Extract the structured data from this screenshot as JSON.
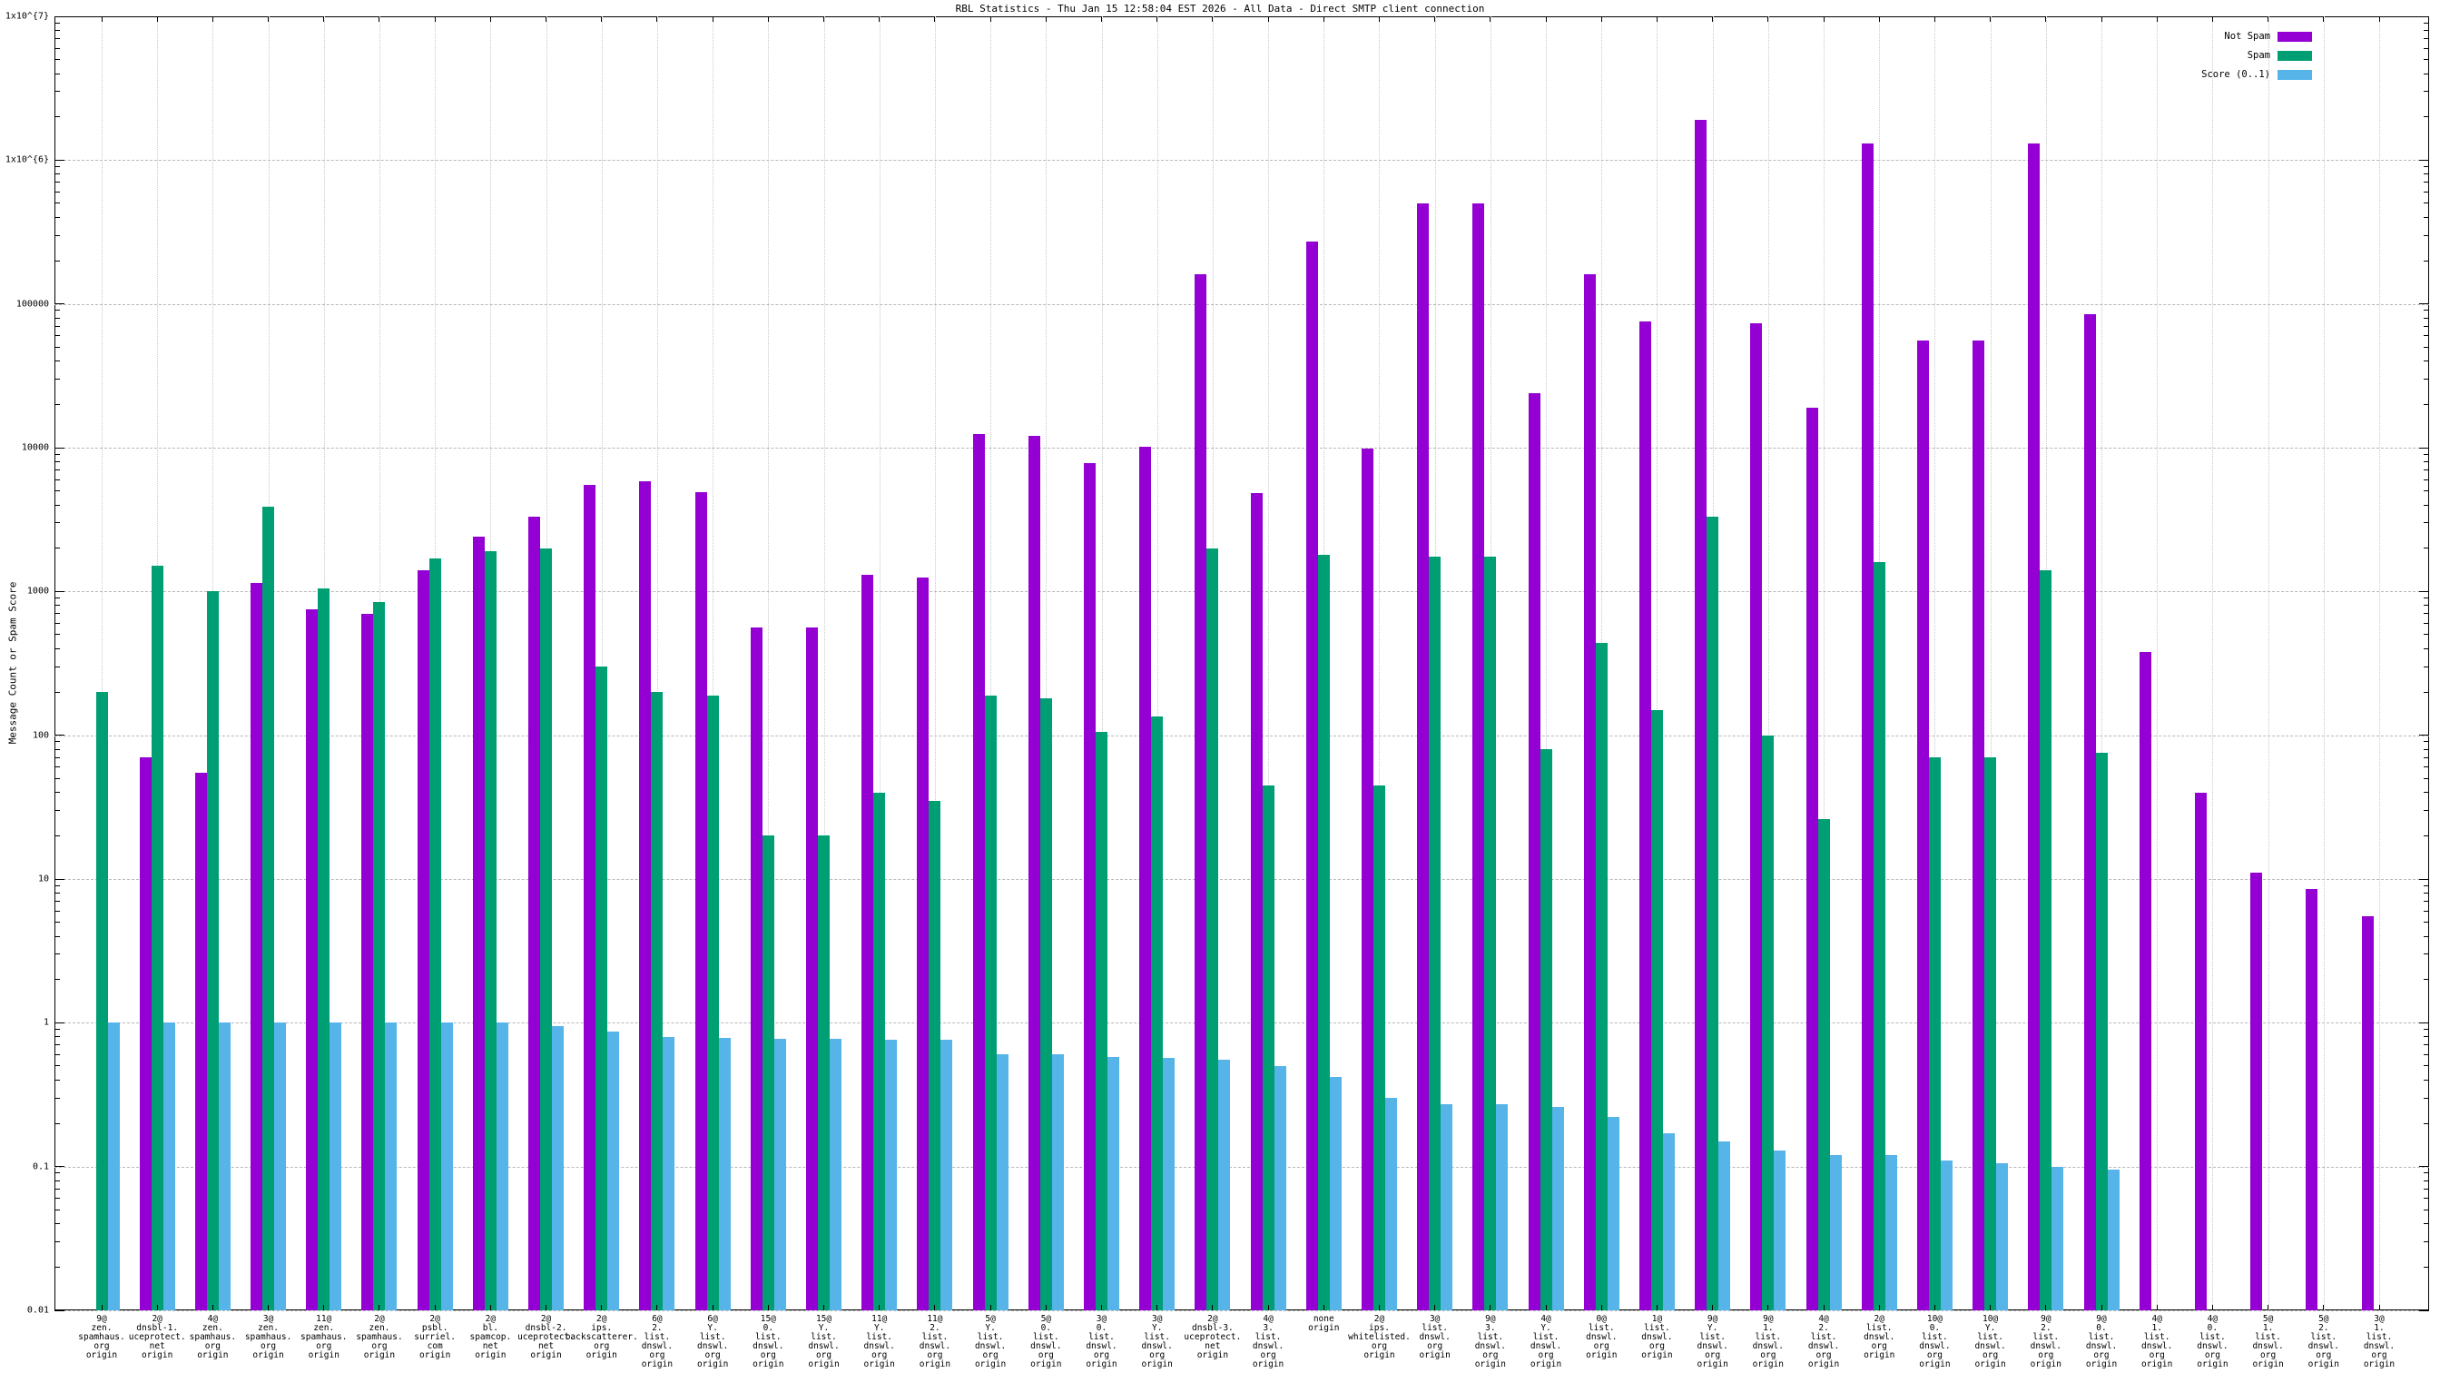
{
  "title": "RBL Statistics - Thu Jan 15 12:58:04 EST 2026 - All Data - Direct SMTP client connection",
  "y_axis": {
    "label": "Message Count or Spam Score",
    "ticks": [
      "1x10^{7}",
      "1x10^{6}",
      "100000",
      "10000",
      "1000",
      "100",
      "10",
      "1",
      "0.1",
      "0.01"
    ]
  },
  "legend": [
    {
      "label": "Not Spam",
      "color": "#9400d3"
    },
    {
      "label": "Spam",
      "color": "#009e73"
    },
    {
      "label": "Score (0..1)",
      "color": "#56b4e9"
    }
  ],
  "colors": {
    "not_spam": "#9400d3",
    "spam": "#009e73",
    "score": "#56b4e9",
    "grid": "#b8b8b8",
    "axis": "#000000"
  },
  "chart_data": {
    "type": "bar",
    "scale": "log",
    "ylim": [
      0.01,
      10000000
    ],
    "grid": true,
    "legend_position": "top-right-inside",
    "title": "RBL Statistics - Thu Jan 15 12:58:04 EST 2026 - All Data - Direct SMTP client connection",
    "ylabel": "Message Count or Spam Score",
    "series_names": [
      "Not Spam",
      "Spam",
      "Score (0..1)"
    ],
    "groups": [
      {
        "label": "9@zen.spamhaus.org origin",
        "lines": [
          "9@",
          "zen.",
          "spamhaus.",
          "org",
          "origin"
        ],
        "not_spam": null,
        "spam": 200,
        "score": 1.0
      },
      {
        "label": "2@dnsbl-1.uceprotect.net origin",
        "lines": [
          "2@",
          "dnsbl-1.",
          "uceprotect.",
          "net",
          "origin"
        ],
        "not_spam": 70,
        "spam": 1500,
        "score": 1.0
      },
      {
        "label": "4@zen.spamhaus.org origin",
        "lines": [
          "4@",
          "zen.",
          "spamhaus.",
          "org",
          "origin"
        ],
        "not_spam": 55,
        "spam": 1000,
        "score": 1.0
      },
      {
        "label": "3@zen.spamhaus.org origin",
        "lines": [
          "3@",
          "zen.",
          "spamhaus.",
          "org",
          "origin"
        ],
        "not_spam": 1150,
        "spam": 3900,
        "score": 1.0
      },
      {
        "label": "11@zen.spamhaus.org origin",
        "lines": [
          "11@",
          "zen.",
          "spamhaus.",
          "org",
          "origin"
        ],
        "not_spam": 750,
        "spam": 1050,
        "score": 1.0
      },
      {
        "label": "2@zen.spamhaus.org origin",
        "lines": [
          "2@",
          "zen.",
          "spamhaus.",
          "org",
          "origin"
        ],
        "not_spam": 700,
        "spam": 850,
        "score": 1.0
      },
      {
        "label": "2@psbl.surriel.com origin",
        "lines": [
          "2@",
          "psbl.",
          "surriel.",
          "com",
          "origin"
        ],
        "not_spam": 1400,
        "spam": 1700,
        "score": 1.0
      },
      {
        "label": "2@bl.spamcop.net origin",
        "lines": [
          "2@",
          "bl.",
          "spamcop.",
          "net",
          "origin"
        ],
        "not_spam": 2400,
        "spam": 1900,
        "score": 1.0
      },
      {
        "label": "2@dnsbl-2.uceprotect.net origin",
        "lines": [
          "2@",
          "dnsbl-2.",
          "uceprotect.",
          "net",
          "origin"
        ],
        "not_spam": 3300,
        "spam": 2000,
        "score": 0.95
      },
      {
        "label": "2@ips.backscatterer.org origin",
        "lines": [
          "2@",
          "ips.",
          "backscatterer.",
          "org",
          "origin"
        ],
        "not_spam": 5500,
        "spam": 300,
        "score": 0.87
      },
      {
        "label": "6@2.list.dnswl.org origin",
        "lines": [
          "6@",
          "2.",
          "list.",
          "dnswl.",
          "org",
          "origin"
        ],
        "not_spam": 5800,
        "spam": 200,
        "score": 0.8
      },
      {
        "label": "6@Y.list.dnswl.org origin",
        "lines": [
          "6@",
          "Y.",
          "list.",
          "dnswl.",
          "org",
          "origin"
        ],
        "not_spam": 4900,
        "spam": 190,
        "score": 0.78
      },
      {
        "label": "15@0.list.dnswl.org origin",
        "lines": [
          "15@",
          "0.",
          "list.",
          "dnswl.",
          "org",
          "origin"
        ],
        "not_spam": 560,
        "spam": 20,
        "score": 0.77
      },
      {
        "label": "15@Y.list.dnswl.org origin",
        "lines": [
          "15@",
          "Y.",
          "list.",
          "dnswl.",
          "org",
          "origin"
        ],
        "not_spam": 560,
        "spam": 20,
        "score": 0.77
      },
      {
        "label": "11@Y.list.dnswl.org origin",
        "lines": [
          "11@",
          "Y.",
          "list.",
          "dnswl.",
          "org",
          "origin"
        ],
        "not_spam": 1300,
        "spam": 40,
        "score": 0.76
      },
      {
        "label": "11@2.list.dnswl.org origin",
        "lines": [
          "11@",
          "2.",
          "list.",
          "dnswl.",
          "org",
          "origin"
        ],
        "not_spam": 1250,
        "spam": 35,
        "score": 0.76
      },
      {
        "label": "5@Y.list.dnswl.org origin",
        "lines": [
          "5@",
          "Y.",
          "list.",
          "dnswl.",
          "org",
          "origin"
        ],
        "not_spam": 12500,
        "spam": 190,
        "score": 0.6
      },
      {
        "label": "5@0.list.dnswl.org origin",
        "lines": [
          "5@",
          "0.",
          "list.",
          "dnswl.",
          "org",
          "origin"
        ],
        "not_spam": 12000,
        "spam": 180,
        "score": 0.6
      },
      {
        "label": "3@0.list.dnswl.org origin",
        "lines": [
          "3@",
          "0.",
          "list.",
          "dnswl.",
          "org",
          "origin"
        ],
        "not_spam": 7800,
        "spam": 105,
        "score": 0.58
      },
      {
        "label": "3@Y.list.dnswl.org origin",
        "lines": [
          "3@",
          "Y.",
          "list.",
          "dnswl.",
          "org",
          "origin"
        ],
        "not_spam": 10200,
        "spam": 135,
        "score": 0.57
      },
      {
        "label": "2@dnsbl-3.uceprotect.net origin",
        "lines": [
          "2@",
          "dnsbl-3.",
          "uceprotect.",
          "net",
          "origin"
        ],
        "not_spam": 160000,
        "spam": 2000,
        "score": 0.55
      },
      {
        "label": "4@3.list.dnswl.org origin",
        "lines": [
          "4@",
          "3.",
          "list.",
          "dnswl.",
          "org",
          "origin"
        ],
        "not_spam": 4800,
        "spam": 45,
        "score": 0.5
      },
      {
        "label": "none origin",
        "lines": [
          "none",
          "origin"
        ],
        "not_spam": 270000,
        "spam": 1800,
        "score": 0.42
      },
      {
        "label": "2@ips.whitelisted.org origin",
        "lines": [
          "2@",
          "ips.",
          "whitelisted.",
          "org",
          "origin"
        ],
        "not_spam": 9800,
        "spam": 45,
        "score": 0.3
      },
      {
        "label": "3@list.dnswl.org origin",
        "lines": [
          "3@",
          "list.",
          "dnswl.",
          "org",
          "origin"
        ],
        "not_spam": 500000,
        "spam": 1750,
        "score": 0.27
      },
      {
        "label": "9@3.list.dnswl.org origin",
        "lines": [
          "9@",
          "3.",
          "list.",
          "dnswl.",
          "org",
          "origin"
        ],
        "not_spam": 500000,
        "spam": 1750,
        "score": 0.27
      },
      {
        "label": "4@Y.list.dnswl.org origin",
        "lines": [
          "4@",
          "Y.",
          "list.",
          "dnswl.",
          "org",
          "origin"
        ],
        "not_spam": 24000,
        "spam": 80,
        "score": 0.26
      },
      {
        "label": "0@list.dnswl.org origin",
        "lines": [
          "0@",
          "list.",
          "dnswl.",
          "org",
          "origin"
        ],
        "not_spam": 160000,
        "spam": 440,
        "score": 0.22
      },
      {
        "label": "1@list.dnswl.org origin",
        "lines": [
          "1@",
          "list.",
          "dnswl.",
          "org",
          "origin"
        ],
        "not_spam": 75000,
        "spam": 150,
        "score": 0.17
      },
      {
        "label": "9@Y.list.dnswl.org origin",
        "lines": [
          "9@",
          "Y.",
          "list.",
          "dnswl.",
          "org",
          "origin"
        ],
        "not_spam": 1900000,
        "spam": 3300,
        "score": 0.15
      },
      {
        "label": "9@1.list.dnswl.org origin",
        "lines": [
          "9@",
          "1.",
          "list.",
          "dnswl.",
          "org",
          "origin"
        ],
        "not_spam": 73000,
        "spam": 100,
        "score": 0.13
      },
      {
        "label": "4@2.list.dnswl.org origin",
        "lines": [
          "4@",
          "2.",
          "list.",
          "dnswl.",
          "org",
          "origin"
        ],
        "not_spam": 19000,
        "spam": 26,
        "score": 0.12
      },
      {
        "label": "2@list.dnswl.org origin",
        "lines": [
          "2@",
          "list.",
          "dnswl.",
          "org",
          "origin"
        ],
        "not_spam": 1300000,
        "spam": 1600,
        "score": 0.12
      },
      {
        "label": "10@0.list.dnswl.org origin",
        "lines": [
          "10@",
          "0.",
          "list.",
          "dnswl.",
          "org",
          "origin"
        ],
        "not_spam": 56000,
        "spam": 70,
        "score": 0.11
      },
      {
        "label": "10@Y.list.dnswl.org origin",
        "lines": [
          "10@",
          "Y.",
          "list.",
          "dnswl.",
          "org",
          "origin"
        ],
        "not_spam": 56000,
        "spam": 70,
        "score": 0.105
      },
      {
        "label": "9@2.list.dnswl.org origin",
        "lines": [
          "9@",
          "2.",
          "list.",
          "dnswl.",
          "org",
          "origin"
        ],
        "not_spam": 1300000,
        "spam": 1400,
        "score": 0.1
      },
      {
        "label": "9@0.list.dnswl.org origin",
        "lines": [
          "9@",
          "0.",
          "list.",
          "dnswl.",
          "org",
          "origin"
        ],
        "not_spam": 85000,
        "spam": 75,
        "score": 0.095
      },
      {
        "label": "4@1.list.dnswl.org origin",
        "lines": [
          "4@",
          "1.",
          "list.",
          "dnswl.",
          "org",
          "origin"
        ],
        "not_spam": 380,
        "spam": null,
        "score": null
      },
      {
        "label": "4@0.list.dnswl.org origin",
        "lines": [
          "4@",
          "0.",
          "list.",
          "dnswl.",
          "org",
          "origin"
        ],
        "not_spam": 40,
        "spam": null,
        "score": null
      },
      {
        "label": "5@1.list.dnswl.org origin",
        "lines": [
          "5@",
          "1.",
          "list.",
          "dnswl.",
          "org",
          "origin"
        ],
        "not_spam": 11,
        "spam": null,
        "score": null
      },
      {
        "label": "5@2.list.dnswl.org origin",
        "lines": [
          "5@",
          "2.",
          "list.",
          "dnswl.",
          "org",
          "origin"
        ],
        "not_spam": 8.5,
        "spam": null,
        "score": null
      },
      {
        "label": "3@1.list.dnswl.org origin",
        "lines": [
          "3@",
          "1.",
          "list.",
          "dnswl.",
          "org",
          "origin"
        ],
        "not_spam": 5.5,
        "spam": null,
        "score": null
      }
    ]
  }
}
